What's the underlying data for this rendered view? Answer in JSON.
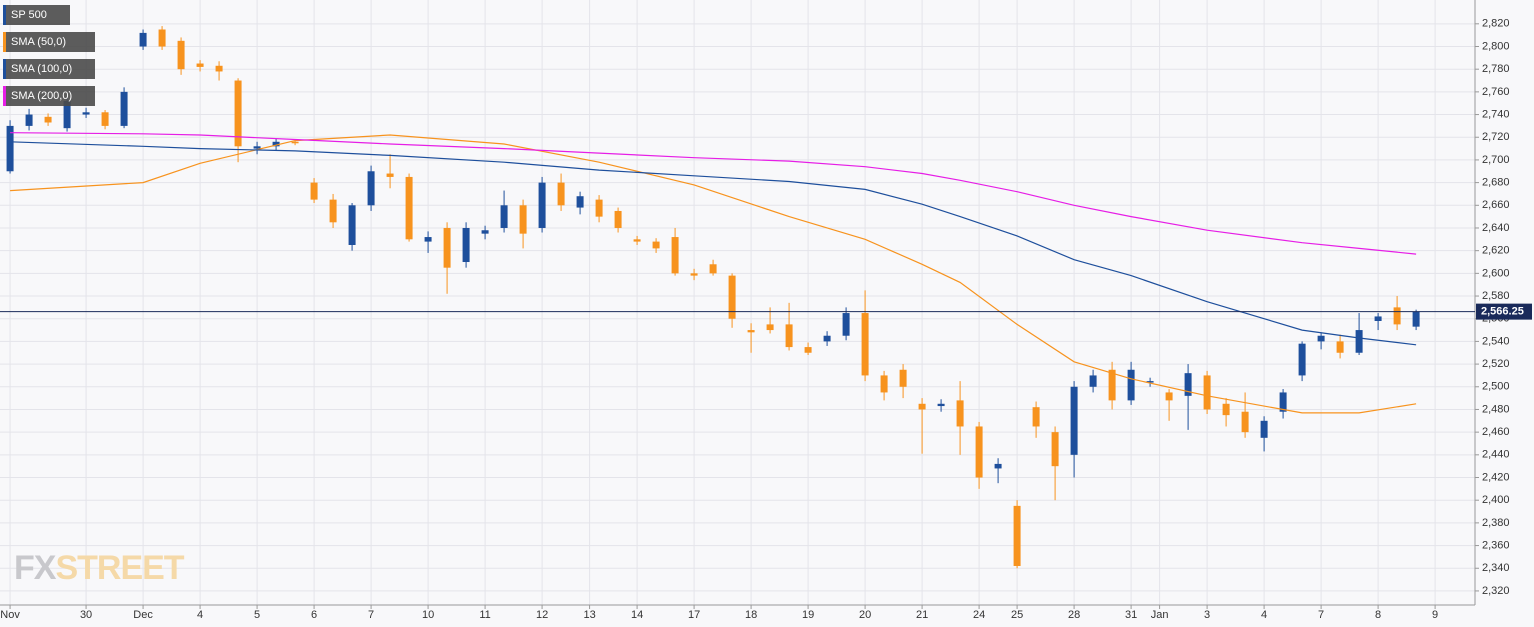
{
  "chart_data": {
    "type": "candlestick",
    "name": "SP 500",
    "up_color": "#1e4f9c",
    "down_color": "#f7931e",
    "x": [
      0,
      1,
      2,
      3,
      4,
      5,
      6,
      7,
      8,
      9,
      10,
      11,
      12,
      13,
      14,
      15,
      16,
      17,
      18,
      19,
      20,
      21,
      22,
      23,
      24,
      25,
      26,
      27,
      28,
      29,
      30,
      31,
      32,
      33,
      34,
      35,
      36,
      37,
      38,
      39,
      40,
      41,
      42,
      43,
      44,
      45,
      46,
      47,
      48,
      49,
      50,
      51,
      52,
      53,
      54,
      55,
      56,
      57,
      58,
      59,
      60,
      61,
      62,
      63,
      64,
      65,
      66,
      67,
      68,
      69,
      70,
      71,
      72,
      73,
      74
    ],
    "open": [
      2690,
      2730,
      2738,
      2728,
      2740,
      2742,
      2730,
      2800,
      2815,
      2805,
      2785,
      2783,
      2770,
      2710,
      2712,
      2716,
      2680,
      2665,
      2625,
      2660,
      2688,
      2685,
      2628,
      2640,
      2610,
      2635,
      2640,
      2660,
      2640,
      2680,
      2658,
      2665,
      2655,
      2630,
      2628,
      2632,
      2600,
      2608,
      2598,
      2550,
      2555,
      2555,
      2535,
      2540,
      2545,
      2565,
      2510,
      2515,
      2485,
      2483,
      2488,
      2465,
      2428,
      2395,
      2482,
      2460,
      2440,
      2500,
      2515,
      2488,
      2505,
      2495,
      2492,
      2510,
      2485,
      2478,
      2455,
      2478,
      2510,
      2540,
      2540,
      2530,
      2558,
      2570,
      2553
    ],
    "high": [
      2735,
      2745,
      2741,
      2756,
      2746,
      2744,
      2764,
      2815,
      2818,
      2808,
      2788,
      2787,
      2772,
      2716,
      2719,
      2718,
      2684,
      2670,
      2662,
      2695,
      2705,
      2688,
      2637,
      2645,
      2645,
      2642,
      2673,
      2665,
      2685,
      2688,
      2672,
      2669,
      2658,
      2633,
      2631,
      2640,
      2604,
      2612,
      2600,
      2556,
      2570,
      2574,
      2539,
      2549,
      2570,
      2585,
      2514,
      2520,
      2490,
      2489,
      2505,
      2469,
      2437,
      2400,
      2487,
      2465,
      2505,
      2515,
      2522,
      2522,
      2508,
      2498,
      2520,
      2514,
      2490,
      2495,
      2474,
      2498,
      2540,
      2548,
      2546,
      2565,
      2565,
      2580,
      2568
    ],
    "low": [
      2688,
      2726,
      2730,
      2725,
      2737,
      2727,
      2728,
      2797,
      2797,
      2775,
      2778,
      2770,
      2698,
      2705,
      2708,
      2713,
      2662,
      2640,
      2620,
      2655,
      2675,
      2628,
      2618,
      2582,
      2605,
      2630,
      2636,
      2622,
      2636,
      2655,
      2652,
      2645,
      2636,
      2625,
      2618,
      2598,
      2594,
      2598,
      2552,
      2530,
      2547,
      2532,
      2528,
      2536,
      2541,
      2505,
      2488,
      2490,
      2441,
      2478,
      2440,
      2410,
      2415,
      2340,
      2455,
      2400,
      2420,
      2495,
      2480,
      2484,
      2500,
      2470,
      2462,
      2476,
      2465,
      2455,
      2443,
      2472,
      2505,
      2533,
      2525,
      2528,
      2550,
      2550,
      2550
    ],
    "close": [
      2730,
      2740,
      2733,
      2752,
      2742,
      2730,
      2760,
      2812,
      2800,
      2780,
      2782,
      2778,
      2712,
      2712,
      2716,
      2715,
      2665,
      2645,
      2660,
      2690,
      2685,
      2630,
      2632,
      2605,
      2640,
      2638,
      2660,
      2635,
      2680,
      2660,
      2668,
      2650,
      2640,
      2628,
      2622,
      2600,
      2598,
      2600,
      2560,
      2548,
      2550,
      2535,
      2530,
      2545,
      2565,
      2510,
      2495,
      2500,
      2480,
      2485,
      2465,
      2420,
      2432,
      2342,
      2465,
      2430,
      2500,
      2510,
      2488,
      2515,
      2505,
      2488,
      2512,
      2480,
      2475,
      2460,
      2470,
      2495,
      2538,
      2545,
      2530,
      2550,
      2562,
      2555,
      2566.25
    ],
    "series": [
      {
        "name": "SMA (50,0)",
        "color": "#f7931e",
        "x": [
          0,
          7,
          10,
          15,
          20,
          26,
          31,
          36,
          41,
          45,
          48,
          50,
          53,
          56,
          59,
          63,
          68,
          71,
          74
        ],
        "values": [
          2673,
          2680,
          2697,
          2717,
          2722,
          2714,
          2698,
          2678,
          2650,
          2630,
          2608,
          2592,
          2555,
          2522,
          2507,
          2492,
          2477,
          2477,
          2485
        ]
      },
      {
        "name": "SMA (100,0)",
        "color": "#1e4f9c",
        "x": [
          0,
          7,
          10,
          15,
          20,
          26,
          31,
          36,
          41,
          45,
          48,
          50,
          53,
          56,
          59,
          63,
          68,
          71,
          74
        ],
        "values": [
          2716,
          2712,
          2710,
          2708,
          2704,
          2698,
          2691,
          2686,
          2681,
          2674,
          2661,
          2650,
          2633,
          2612,
          2598,
          2575,
          2550,
          2543,
          2537
        ]
      },
      {
        "name": "SMA (200,0)",
        "color": "#e61ee6",
        "x": [
          0,
          7,
          10,
          15,
          20,
          26,
          31,
          36,
          41,
          45,
          48,
          50,
          53,
          56,
          59,
          63,
          68,
          71,
          74
        ],
        "values": [
          2724,
          2723,
          2722,
          2718,
          2714,
          2710,
          2706,
          2702,
          2699,
          2694,
          2688,
          2682,
          2672,
          2660,
          2650,
          2638,
          2627,
          2622,
          2617
        ]
      }
    ],
    "last_price": {
      "value": 2566.25,
      "label": "2,566.25"
    },
    "last_price_color": "#1a2a5a",
    "xlim": [
      -0.53,
      77.1
    ],
    "xticks": [
      {
        "value": 0,
        "label": "Nov"
      },
      {
        "value": 4,
        "label": "30"
      },
      {
        "value": 7,
        "label": "Dec"
      },
      {
        "value": 10,
        "label": "4"
      },
      {
        "value": 13,
        "label": "5"
      },
      {
        "value": 16,
        "label": "6"
      },
      {
        "value": 19,
        "label": "7"
      },
      {
        "value": 22,
        "label": "10"
      },
      {
        "value": 25,
        "label": "11"
      },
      {
        "value": 28,
        "label": "12"
      },
      {
        "value": 30.5,
        "label": "13"
      },
      {
        "value": 33,
        "label": "14"
      },
      {
        "value": 36,
        "label": "17"
      },
      {
        "value": 39,
        "label": "18"
      },
      {
        "value": 42,
        "label": "19"
      },
      {
        "value": 45,
        "label": "20"
      },
      {
        "value": 48,
        "label": "21"
      },
      {
        "value": 51,
        "label": "24"
      },
      {
        "value": 53,
        "label": "25"
      },
      {
        "value": 56,
        "label": "28"
      },
      {
        "value": 59,
        "label": "31"
      },
      {
        "value": 60.5,
        "label": "Jan"
      },
      {
        "value": 63,
        "label": "3"
      },
      {
        "value": 66,
        "label": "4"
      },
      {
        "value": 69,
        "label": "7"
      },
      {
        "value": 72,
        "label": "8"
      },
      {
        "value": 75,
        "label": "9"
      }
    ],
    "ylim": [
      2307.6,
      2841
    ],
    "yticks": [
      {
        "value": 2320,
        "label": "2,320"
      },
      {
        "value": 2340,
        "label": "2,340"
      },
      {
        "value": 2360,
        "label": "2,360"
      },
      {
        "value": 2380,
        "label": "2,380"
      },
      {
        "value": 2400,
        "label": "2,400"
      },
      {
        "value": 2420,
        "label": "2,420"
      },
      {
        "value": 2440,
        "label": "2,440"
      },
      {
        "value": 2460,
        "label": "2,460"
      },
      {
        "value": 2480,
        "label": "2,480"
      },
      {
        "value": 2500,
        "label": "2,500"
      },
      {
        "value": 2520,
        "label": "2,520"
      },
      {
        "value": 2540,
        "label": "2,540"
      },
      {
        "value": 2560,
        "label": "2,560"
      },
      {
        "value": 2580,
        "label": "2,580"
      },
      {
        "value": 2600,
        "label": "2,600"
      },
      {
        "value": 2620,
        "label": "2,620"
      },
      {
        "value": 2640,
        "label": "2,640"
      },
      {
        "value": 2660,
        "label": "2,660"
      },
      {
        "value": 2680,
        "label": "2,680"
      },
      {
        "value": 2700,
        "label": "2,700"
      },
      {
        "value": 2720,
        "label": "2,720"
      },
      {
        "value": 2740,
        "label": "2,740"
      },
      {
        "value": 2760,
        "label": "2,760"
      },
      {
        "value": 2780,
        "label": "2,780"
      },
      {
        "value": 2800,
        "label": "2,800"
      },
      {
        "value": 2820,
        "label": "2,820"
      }
    ],
    "grid": true,
    "legend": "top-left",
    "watermark": [
      "FX",
      "STREET"
    ]
  }
}
